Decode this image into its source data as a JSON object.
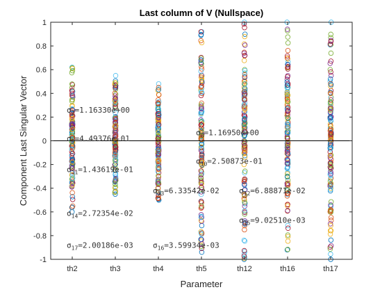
{
  "chart_data": {
    "type": "scatter",
    "title": "Last column of V (Nullspace)",
    "xlabel": "Parameter",
    "ylabel": "Component Last Singular Vector",
    "categories": [
      "th2",
      "th3",
      "th4",
      "th5",
      "th12",
      "th16",
      "th17"
    ],
    "ylim": [
      -1,
      1
    ],
    "yticks": [
      -1,
      -0.8,
      -0.6,
      -0.4,
      -0.2,
      0,
      0.2,
      0.4,
      0.6,
      0.8,
      1
    ],
    "ytick_labels": [
      "-1",
      "-0.8",
      "-0.6",
      "-0.4",
      "-0.2",
      "0",
      "0.2",
      "0.4",
      "0.6",
      "0.8",
      "1"
    ],
    "zero_line": true,
    "grid": false,
    "marker": "open circle",
    "column_ranges": [
      {
        "category": "th2",
        "min": -0.6,
        "max": 0.62
      },
      {
        "category": "th3",
        "min": -0.45,
        "max": 0.55
      },
      {
        "category": "th4",
        "min": -0.5,
        "max": 0.48
      },
      {
        "category": "th5",
        "min": -0.94,
        "max": 0.92
      },
      {
        "category": "th12",
        "min": -1.0,
        "max": 1.0
      },
      {
        "category": "th16",
        "min": -0.92,
        "max": 1.0
      },
      {
        "category": "th17",
        "min": -1.0,
        "max": 1.0
      }
    ],
    "color_cycle": [
      "#0072BD",
      "#D95319",
      "#EDB120",
      "#7E2F8E",
      "#77AC30",
      "#4DBEEE",
      "#A2142F"
    ],
    "annotations": [
      {
        "symbol": "σ",
        "sub": "2",
        "text": "=1.16330e+00",
        "x": "th2",
        "y": 0.26
      },
      {
        "symbol": "σ",
        "sub": "5",
        "text": "=4.49376e-01",
        "x": "th2",
        "y": 0.02
      },
      {
        "symbol": "σ",
        "sub": "11",
        "text": "=1.43619e-01",
        "x": "th2",
        "y": -0.24
      },
      {
        "symbol": "σ",
        "sub": "14",
        "text": "=2.72354e-02",
        "x": "th2",
        "y": -0.61
      },
      {
        "symbol": "σ",
        "sub": "17",
        "text": "=2.00186e-03",
        "x": "th2",
        "y": -0.88
      },
      {
        "symbol": "σ",
        "sub": "13",
        "text": "=6.33542e-02",
        "x": "th4",
        "y": -0.42
      },
      {
        "symbol": "σ",
        "sub": "16",
        "text": "=3.59934e-03",
        "x": "th4",
        "y": -0.88
      },
      {
        "symbol": "σ",
        "sub": "8",
        "text": "=1.16950e+00",
        "x": "th5",
        "y": 0.07
      },
      {
        "symbol": "σ",
        "sub": "10",
        "text": "=2.50873e-01",
        "x": "th5",
        "y": -0.17
      },
      {
        "symbol": "σ",
        "sub": "12",
        "text": "=6.88871e-02",
        "x": "th12",
        "y": -0.42
      },
      {
        "symbol": "σ",
        "sub": "15",
        "text": "=9.02510e-03",
        "x": "th12",
        "y": -0.67
      }
    ]
  }
}
